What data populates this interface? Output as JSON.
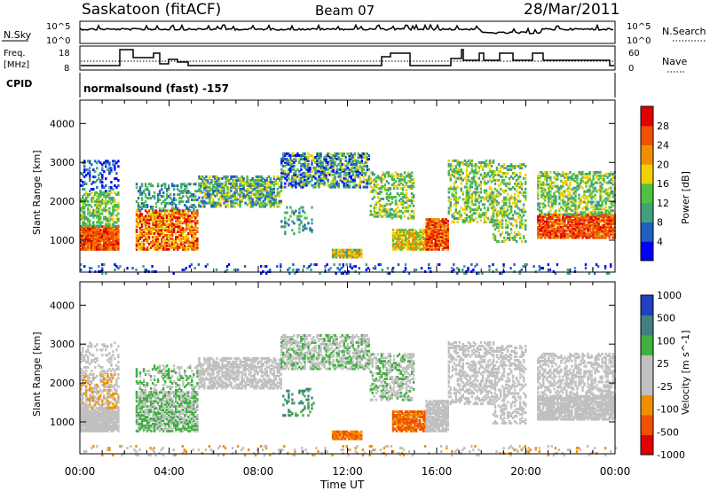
{
  "header": {
    "title": "Saskatoon (fitACF)",
    "beam": "Beam 07",
    "date": "28/Mar/2011"
  },
  "top_panels": {
    "nsky_label": "N.Sky",
    "nsearch_label": "N.Search",
    "nsky_ticks": [
      "10^5",
      "10^0"
    ],
    "nsearch_ticks": [
      "10^5",
      "10^0"
    ],
    "freq_label_1": "Freq.",
    "freq_label_2": "[MHz]",
    "freq_ticks": [
      "18",
      "8"
    ],
    "nave_label": "Nave",
    "nave_ticks": [
      "60",
      "0"
    ],
    "cpid_label": "CPID",
    "cpid_value": "normalsound (fast) -157"
  },
  "colors": {
    "power": [
      "#0000ff",
      "#2060c0",
      "#40a080",
      "#50c040",
      "#f0d000",
      "#f09000",
      "#f05000",
      "#e00000"
    ],
    "velocity": [
      "#e00000",
      "#f05000",
      "#f09000",
      "#c0c0c0",
      "#c0c0c0",
      "#40b040",
      "#408080",
      "#2040c0"
    ]
  },
  "chart_data": [
    {
      "type": "heatmap",
      "name": "power",
      "xlabel": "Time UT",
      "ylabel": "Slant Range [km]",
      "x_ticks": [
        "00:00",
        "04:00",
        "08:00",
        "12:00",
        "16:00",
        "20:00",
        "00:00"
      ],
      "y_ticks": [
        "1000",
        "2000",
        "3000",
        "4000"
      ],
      "xlim": [
        0,
        24
      ],
      "ylim": [
        180,
        4600
      ],
      "colorbar_label": "Power [dB]",
      "colorbar_ticks": [
        "4",
        "8",
        "12",
        "16",
        "20",
        "24",
        "28"
      ],
      "colorbar_range": [
        0,
        32
      ]
    },
    {
      "type": "heatmap",
      "name": "velocity",
      "xlabel": "Time UT",
      "ylabel": "Slant Range [km]",
      "x_ticks": [
        "00:00",
        "04:00",
        "08:00",
        "12:00",
        "16:00",
        "20:00",
        "00:00"
      ],
      "y_ticks": [
        "1000",
        "2000",
        "3000",
        "4000"
      ],
      "xlim": [
        0,
        24
      ],
      "ylim": [
        180,
        4600
      ],
      "colorbar_label": "Velocity [m s^-1]",
      "colorbar_ticks": [
        "1000",
        "500",
        "100",
        "25",
        "-25",
        "-100",
        "-500",
        "-1000"
      ]
    }
  ]
}
